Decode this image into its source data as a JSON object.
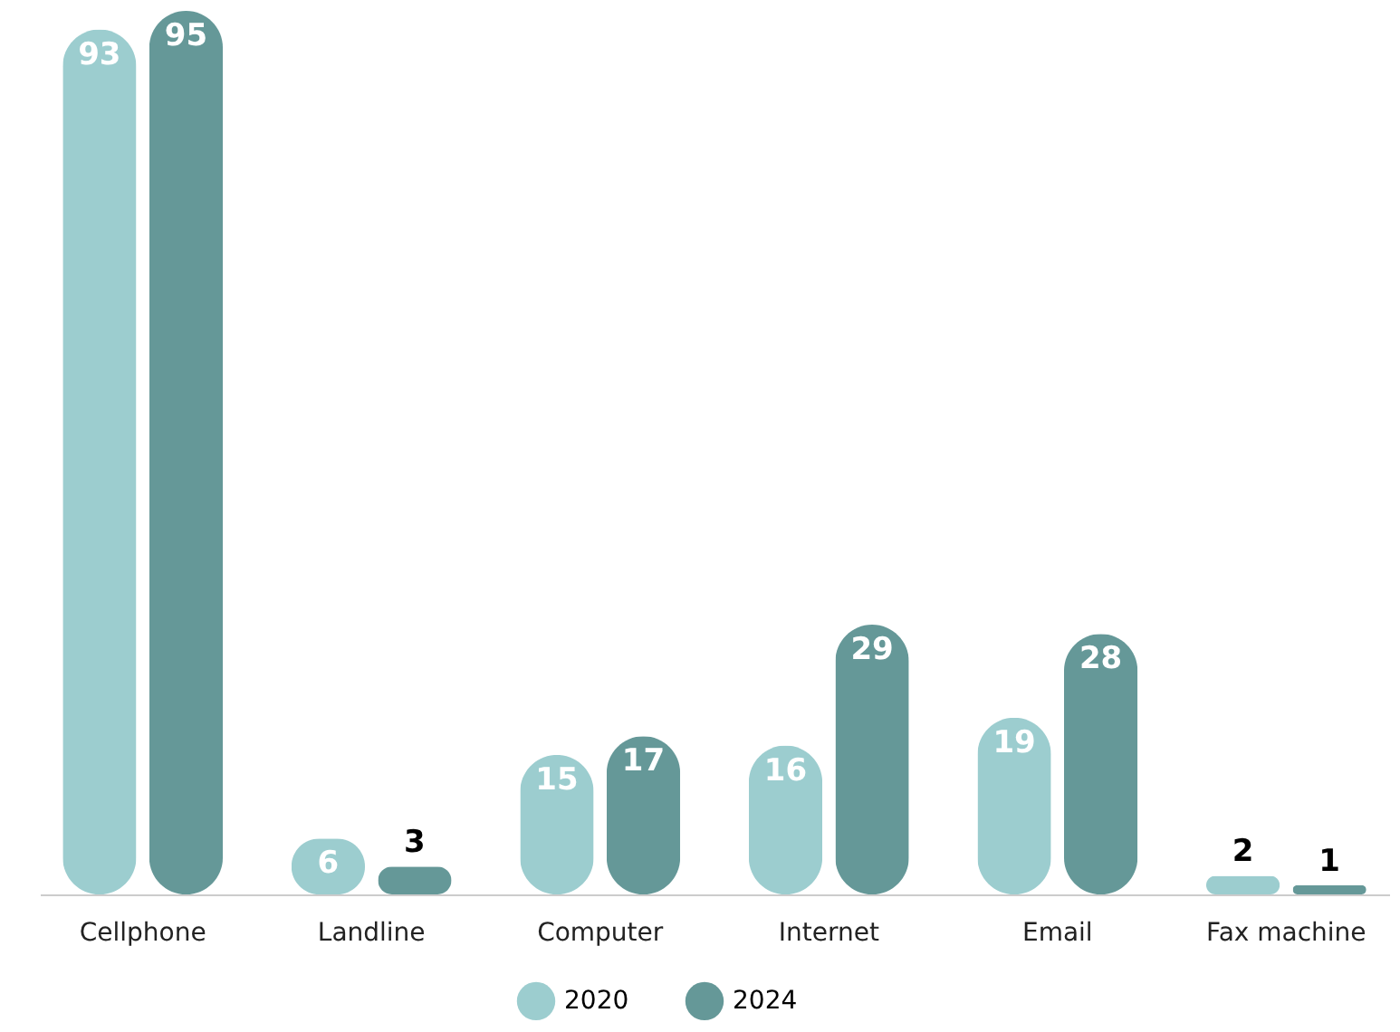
{
  "chart_data": {
    "type": "bar",
    "categories": [
      "Cellphone",
      "Landline",
      "Computer",
      "Internet",
      "Email",
      "Fax machine"
    ],
    "series": [
      {
        "name": "2020",
        "color": "#9ccdcf",
        "values": [
          93,
          6,
          15,
          16,
          19,
          2
        ]
      },
      {
        "name": "2024",
        "color": "#659898",
        "values": [
          95,
          3,
          17,
          29,
          28,
          1
        ]
      }
    ],
    "data_labels": true,
    "legend": "bottom",
    "grid": false
  }
}
